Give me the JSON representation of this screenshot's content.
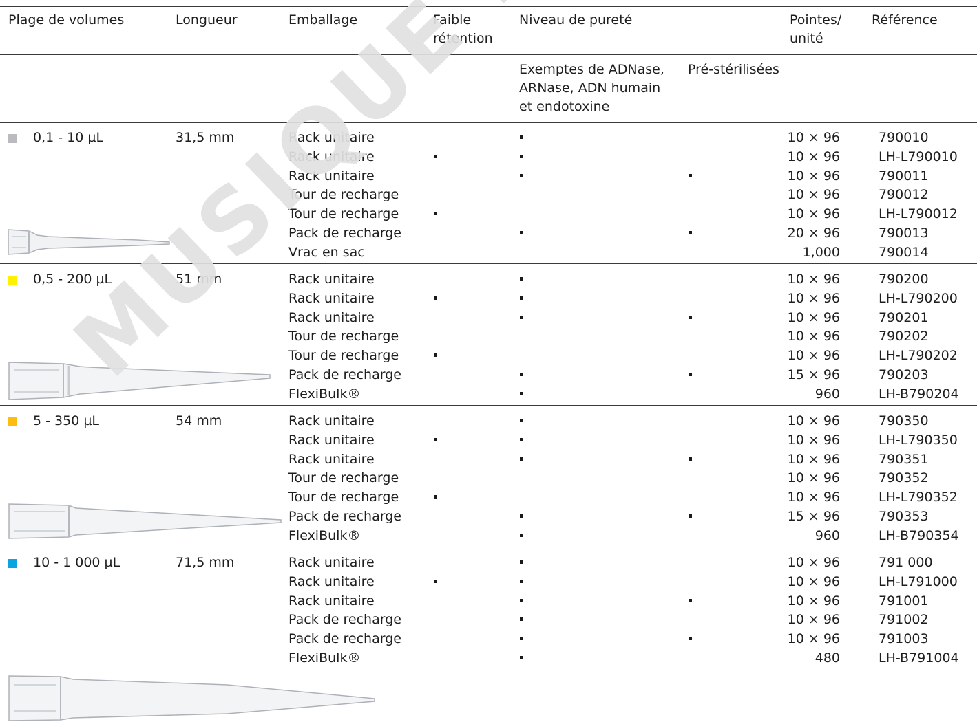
{
  "headers": {
    "volume_range": "Plage de volumes",
    "length": "Longueur",
    "packaging": "Emballage",
    "low_retention_line1": "Faible",
    "low_retention_line2": "rétention",
    "purity": "Niveau de pureté",
    "tips_line1": "Pointes/",
    "tips_line2": "unité",
    "reference": "Référence"
  },
  "subheaders": {
    "free_of_line1": "Exemptes de ADNase,",
    "free_of_line2": "ARNase, ADN humain",
    "free_of_line3": "et endotoxine",
    "presterilized": "Pré-stérilisées"
  },
  "watermark": "MUSIQUE DUTSCHER SAS",
  "groups": [
    {
      "volume": "0,1 - 10 µL",
      "length": "31,5 mm",
      "color": "#b9bbbe",
      "rows": [
        {
          "packaging": "Rack unitaire",
          "low_retention": false,
          "free": true,
          "sterile": false,
          "tips": "10 × 96",
          "ref": "790010"
        },
        {
          "packaging": "Rack unitaire",
          "low_retention": true,
          "free": true,
          "sterile": false,
          "tips": "10 × 96",
          "ref": "LH-L790010"
        },
        {
          "packaging": "Rack unitaire",
          "low_retention": false,
          "free": true,
          "sterile": true,
          "tips": "10 × 96",
          "ref": "790011"
        },
        {
          "packaging": "Tour de recharge",
          "low_retention": false,
          "free": false,
          "sterile": false,
          "tips": "10 × 96",
          "ref": "790012"
        },
        {
          "packaging": "Tour de recharge",
          "low_retention": true,
          "free": false,
          "sterile": false,
          "tips": "10 × 96",
          "ref": "LH-L790012"
        },
        {
          "packaging": "Pack de recharge",
          "low_retention": false,
          "free": true,
          "sterile": true,
          "tips": "20 × 96",
          "ref": "790013"
        },
        {
          "packaging": "Vrac en sac",
          "low_retention": false,
          "free": false,
          "sterile": false,
          "tips": "1,000",
          "ref": "790014"
        }
      ]
    },
    {
      "volume": "0,5 - 200 µL",
      "length": "51 mm",
      "color": "#fff100",
      "rows": [
        {
          "packaging": "Rack unitaire",
          "low_retention": false,
          "free": true,
          "sterile": false,
          "tips": "10 × 96",
          "ref": "790200"
        },
        {
          "packaging": "Rack unitaire",
          "low_retention": true,
          "free": true,
          "sterile": false,
          "tips": "10 × 96",
          "ref": "LH-L790200"
        },
        {
          "packaging": "Rack unitaire",
          "low_retention": false,
          "free": true,
          "sterile": true,
          "tips": "10 × 96",
          "ref": "790201"
        },
        {
          "packaging": "Tour de recharge",
          "low_retention": false,
          "free": false,
          "sterile": false,
          "tips": "10 × 96",
          "ref": "790202"
        },
        {
          "packaging": "Tour de recharge",
          "low_retention": true,
          "free": false,
          "sterile": false,
          "tips": "10 × 96",
          "ref": "LH-L790202"
        },
        {
          "packaging": "Pack de recharge",
          "low_retention": false,
          "free": true,
          "sterile": true,
          "tips": "15 × 96",
          "ref": "790203"
        },
        {
          "packaging": "FlexiBulk®",
          "low_retention": false,
          "free": true,
          "sterile": false,
          "tips": "960",
          "ref": "LH-B790204"
        }
      ]
    },
    {
      "volume": "5 - 350 µL",
      "length": "54 mm",
      "color": "#fdbd10",
      "rows": [
        {
          "packaging": "Rack unitaire",
          "low_retention": false,
          "free": true,
          "sterile": false,
          "tips": "10 × 96",
          "ref": "790350"
        },
        {
          "packaging": "Rack unitaire",
          "low_retention": true,
          "free": true,
          "sterile": false,
          "tips": "10 × 96",
          "ref": "LH-L790350"
        },
        {
          "packaging": "Rack unitaire",
          "low_retention": false,
          "free": true,
          "sterile": true,
          "tips": "10 × 96",
          "ref": "790351"
        },
        {
          "packaging": "Tour de recharge",
          "low_retention": false,
          "free": false,
          "sterile": false,
          "tips": "10 × 96",
          "ref": "790352"
        },
        {
          "packaging": "Tour de recharge",
          "low_retention": true,
          "free": false,
          "sterile": false,
          "tips": "10 × 96",
          "ref": "LH-L790352"
        },
        {
          "packaging": "Pack de recharge",
          "low_retention": false,
          "free": true,
          "sterile": true,
          "tips": "15 × 96",
          "ref": "790353"
        },
        {
          "packaging": "FlexiBulk®",
          "low_retention": false,
          "free": true,
          "sterile": false,
          "tips": "960",
          "ref": "LH-B790354"
        }
      ]
    },
    {
      "volume": "10 - 1 000 µL",
      "length": "71,5 mm",
      "color": "#0aa4df",
      "rows": [
        {
          "packaging": "Rack unitaire",
          "low_retention": false,
          "free": true,
          "sterile": false,
          "tips": "10 × 96",
          "ref": "791 000"
        },
        {
          "packaging": "Rack unitaire",
          "low_retention": true,
          "free": true,
          "sterile": false,
          "tips": "10 × 96",
          "ref": "LH-L791000"
        },
        {
          "packaging": "Rack unitaire",
          "low_retention": false,
          "free": true,
          "sterile": true,
          "tips": "10 × 96",
          "ref": "791001"
        },
        {
          "packaging": "Pack de recharge",
          "low_retention": false,
          "free": true,
          "sterile": false,
          "tips": "10 × 96",
          "ref": "791002"
        },
        {
          "packaging": "Pack de recharge",
          "low_retention": false,
          "free": true,
          "sterile": true,
          "tips": "10 × 96",
          "ref": "791003"
        },
        {
          "packaging": "FlexiBulk®",
          "low_retention": false,
          "free": true,
          "sterile": false,
          "tips": "480",
          "ref": "LH-B791004"
        }
      ]
    }
  ]
}
